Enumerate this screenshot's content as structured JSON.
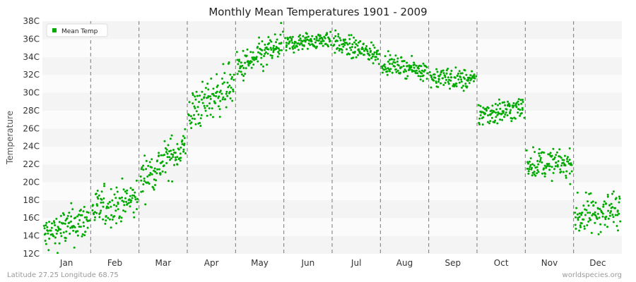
{
  "chart_data": {
    "type": "scatter",
    "title": "Monthly Mean Temperatures 1901 - 2009",
    "xlabel": "",
    "ylabel": "Temperature",
    "ylim": [
      12,
      38
    ],
    "y_ticks": [
      "12C",
      "14C",
      "16C",
      "18C",
      "20C",
      "22C",
      "24C",
      "26C",
      "28C",
      "30C",
      "32C",
      "34C",
      "36C",
      "38C"
    ],
    "categories": [
      "Jan",
      "Feb",
      "Mar",
      "Apr",
      "May",
      "Jun",
      "Jul",
      "Aug",
      "Sep",
      "Oct",
      "Nov",
      "Dec"
    ],
    "grid": "horizontal bands, dashed month separators",
    "legend_position": "top-left",
    "series": [
      {
        "name": "Mean Temp",
        "color": "#00aa00",
        "monthly_start": [
          14.0,
          16.9,
          20.3,
          27.6,
          32.6,
          35.4,
          35.6,
          33.3,
          31.8,
          27.6,
          22.2,
          16.1
        ],
        "monthly_end": [
          15.9,
          18.1,
          24.1,
          31.2,
          35.4,
          36.1,
          34.2,
          32.4,
          31.3,
          28.3,
          22.0,
          17.1
        ],
        "monthly_spread": [
          1.1,
          1.1,
          1.1,
          1.2,
          0.9,
          0.5,
          0.6,
          0.5,
          0.6,
          0.7,
          0.8,
          1.1
        ],
        "samples_per_month": 109
      }
    ]
  },
  "footer": {
    "location": "Latitude 27.25 Longitude 68.75",
    "site": "worldspecies.org"
  }
}
